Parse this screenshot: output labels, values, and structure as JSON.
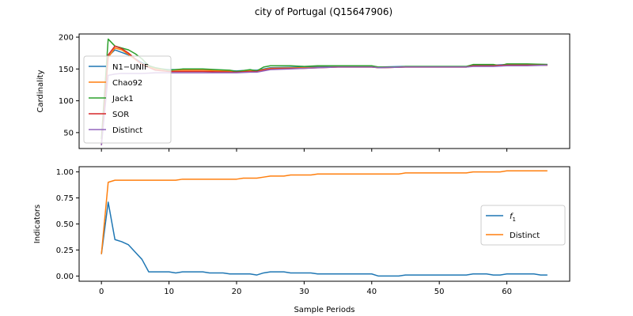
{
  "title": "city of Portugal (Q15647906)",
  "colors": {
    "blue": "#1f77b4",
    "orange": "#ff7f0e",
    "green": "#2ca02c",
    "red": "#d62728",
    "purple": "#9467bd"
  },
  "chart_data": [
    {
      "type": "line",
      "xlabel": "",
      "ylabel": "Cardinality",
      "xlim": [
        -3.3,
        69.3
      ],
      "ylim": [
        25,
        205
      ],
      "xticks": [
        0,
        10,
        20,
        30,
        40,
        50,
        60
      ],
      "yticks": [
        50,
        100,
        150,
        200
      ],
      "grid": false,
      "legend_position": "center-left",
      "series": [
        {
          "name": "N1−UNIF",
          "color": "#1f77b4",
          "x": [
            0,
            1,
            2,
            3,
            4,
            5,
            6,
            8,
            10,
            15,
            20,
            22,
            23,
            24,
            25,
            30,
            35,
            40,
            41,
            45,
            50,
            54,
            55,
            58,
            60,
            63,
            66
          ],
          "y": [
            32,
            170,
            180,
            176,
            172,
            166,
            160,
            151,
            149,
            149,
            147,
            148,
            148,
            150,
            152,
            153,
            154,
            154,
            153,
            154,
            154,
            154,
            156,
            156,
            157,
            157,
            157
          ]
        },
        {
          "name": "Chao92",
          "color": "#ff7f0e",
          "x": [
            0,
            1,
            2,
            3,
            4,
            5,
            6,
            8,
            10,
            15,
            20,
            22,
            23,
            24,
            25,
            30,
            35,
            40,
            41,
            45,
            50,
            54,
            55,
            58,
            60,
            63,
            66
          ],
          "y": [
            30,
            168,
            183,
            180,
            173,
            165,
            158,
            150,
            148,
            148,
            146,
            147,
            147,
            149,
            151,
            152,
            153,
            153,
            152,
            153,
            153,
            153,
            155,
            155,
            156,
            156,
            156
          ]
        },
        {
          "name": "Jack1",
          "color": "#2ca02c",
          "x": [
            0,
            1,
            2,
            3,
            4,
            5,
            6,
            7,
            8,
            10,
            12,
            15,
            17,
            19,
            20,
            22,
            23,
            24,
            25,
            26,
            28,
            30,
            32,
            35,
            40,
            41,
            44,
            45,
            50,
            54,
            55,
            58,
            59,
            60,
            63,
            66
          ],
          "y": [
            40,
            197,
            186,
            183,
            180,
            174,
            166,
            155,
            152,
            148,
            150,
            150,
            149,
            148,
            146,
            149,
            147,
            153,
            155,
            155,
            155,
            154,
            155,
            155,
            155,
            153,
            153,
            154,
            154,
            154,
            157,
            157,
            155,
            158,
            158,
            157
          ]
        },
        {
          "name": "SOR",
          "color": "#d62728",
          "x": [
            0,
            1,
            2,
            3,
            4,
            5,
            6,
            8,
            10,
            15,
            20,
            22,
            23,
            24,
            25,
            30,
            35,
            40,
            41,
            45,
            50,
            54,
            55,
            58,
            60,
            63,
            66
          ],
          "y": [
            30,
            172,
            186,
            182,
            175,
            166,
            157,
            148,
            146,
            146,
            145,
            146,
            146,
            148,
            150,
            151,
            153,
            153,
            152,
            153,
            153,
            153,
            155,
            155,
            156,
            156,
            156
          ]
        },
        {
          "name": "Distinct",
          "color": "#9467bd",
          "x": [
            0,
            1,
            2,
            3,
            4,
            5,
            6,
            8,
            10,
            15,
            20,
            22,
            23,
            24,
            25,
            28,
            30,
            32,
            35,
            40,
            41,
            45,
            50,
            54,
            55,
            58,
            60,
            63,
            66
          ],
          "y": [
            30,
            140,
            142,
            143,
            143,
            143,
            143,
            144,
            144,
            144,
            144,
            145,
            145,
            147,
            149,
            150,
            151,
            152,
            153,
            153,
            152,
            153,
            153,
            153,
            154,
            154,
            155,
            155,
            156
          ]
        }
      ]
    },
    {
      "type": "line",
      "xlabel": "Sample Periods",
      "ylabel": "Indicators",
      "xlim": [
        -3.3,
        69.3
      ],
      "ylim": [
        -0.05,
        1.05
      ],
      "xticks": [
        0,
        10,
        20,
        30,
        40,
        50,
        60
      ],
      "yticks": [
        0.0,
        0.25,
        0.5,
        0.75,
        1.0
      ],
      "grid": false,
      "legend_position": "center-right",
      "series": [
        {
          "name": "f1",
          "color": "#1f77b4",
          "x": [
            0,
            1,
            2,
            3,
            4,
            5,
            6,
            7,
            8,
            9,
            10,
            11,
            12,
            13,
            14,
            15,
            16,
            17,
            18,
            19,
            20,
            21,
            22,
            23,
            24,
            25,
            26,
            27,
            28,
            29,
            30,
            31,
            32,
            33,
            34,
            35,
            36,
            37,
            38,
            39,
            40,
            41,
            42,
            43,
            44,
            45,
            46,
            47,
            48,
            49,
            50,
            51,
            52,
            53,
            54,
            55,
            56,
            57,
            58,
            59,
            60,
            61,
            62,
            63,
            64,
            65,
            66
          ],
          "y": [
            0.21,
            0.71,
            0.35,
            0.33,
            0.3,
            0.23,
            0.16,
            0.04,
            0.04,
            0.04,
            0.04,
            0.03,
            0.04,
            0.04,
            0.04,
            0.04,
            0.03,
            0.03,
            0.03,
            0.02,
            0.02,
            0.02,
            0.02,
            0.01,
            0.03,
            0.04,
            0.04,
            0.04,
            0.03,
            0.03,
            0.03,
            0.03,
            0.02,
            0.02,
            0.02,
            0.02,
            0.02,
            0.02,
            0.02,
            0.02,
            0.02,
            0.0,
            0.0,
            0.0,
            0.0,
            0.01,
            0.01,
            0.01,
            0.01,
            0.01,
            0.01,
            0.01,
            0.01,
            0.01,
            0.01,
            0.02,
            0.02,
            0.02,
            0.01,
            0.01,
            0.02,
            0.02,
            0.02,
            0.02,
            0.02,
            0.01,
            0.01
          ]
        },
        {
          "name": "Distinct",
          "color": "#ff7f0e",
          "x": [
            0,
            1,
            2,
            3,
            4,
            5,
            6,
            7,
            8,
            9,
            10,
            11,
            12,
            13,
            14,
            15,
            16,
            17,
            18,
            19,
            20,
            21,
            22,
            23,
            24,
            25,
            26,
            27,
            28,
            29,
            30,
            31,
            32,
            33,
            34,
            35,
            36,
            37,
            38,
            39,
            40,
            41,
            42,
            43,
            44,
            45,
            46,
            47,
            48,
            49,
            50,
            51,
            52,
            53,
            54,
            55,
            56,
            57,
            58,
            59,
            60,
            61,
            62,
            63,
            64,
            65,
            66
          ],
          "y": [
            0.21,
            0.9,
            0.92,
            0.92,
            0.92,
            0.92,
            0.92,
            0.92,
            0.92,
            0.92,
            0.92,
            0.92,
            0.93,
            0.93,
            0.93,
            0.93,
            0.93,
            0.93,
            0.93,
            0.93,
            0.93,
            0.94,
            0.94,
            0.94,
            0.95,
            0.96,
            0.96,
            0.96,
            0.97,
            0.97,
            0.97,
            0.97,
            0.98,
            0.98,
            0.98,
            0.98,
            0.98,
            0.98,
            0.98,
            0.98,
            0.98,
            0.98,
            0.98,
            0.98,
            0.98,
            0.99,
            0.99,
            0.99,
            0.99,
            0.99,
            0.99,
            0.99,
            0.99,
            0.99,
            0.99,
            1.0,
            1.0,
            1.0,
            1.0,
            1.0,
            1.01,
            1.01,
            1.01,
            1.01,
            1.01,
            1.01,
            1.01
          ]
        }
      ]
    }
  ]
}
